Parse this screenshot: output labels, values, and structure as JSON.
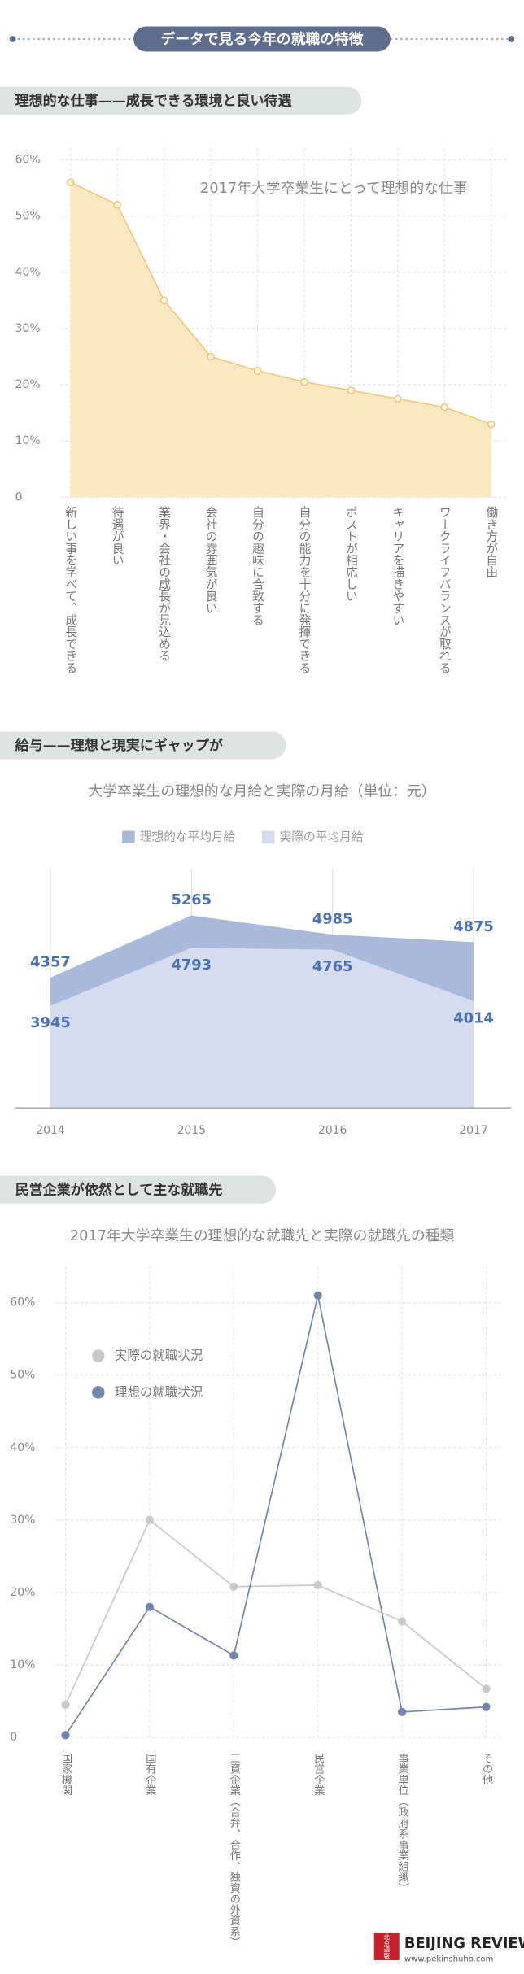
{
  "header": {
    "title": "データで見る今年の就職の特徴"
  },
  "sections": [
    "理想的な仕事——成長できる環境と良い待遇",
    "給与——理想と現実にギャップが",
    "民営企業が依然として主な就職先"
  ],
  "chart_data": [
    {
      "type": "area",
      "title": "2017年大学卒業生にとって理想的な仕事",
      "categories": [
        "新しい事を学べて、成長できる",
        "待遇が良い",
        "業界・会社の成長が見込める",
        "会社の雰囲気が良い",
        "自分の趣味に合致する",
        "自分の能力を十分に発揮できる",
        "ポストが相応しい",
        "キャリアを描きやすい",
        "ワークライフバランスが取れる",
        "働き方が自由"
      ],
      "values": [
        56,
        52,
        35,
        25,
        22.5,
        20.5,
        19,
        17.5,
        16,
        13
      ],
      "color": "#efc677",
      "fill": "#fbe8c2",
      "ylim": [
        0,
        62
      ],
      "yticks": [
        0,
        {
          "value": 10,
          "label": "10%"
        },
        {
          "value": 20,
          "label": "20%"
        },
        {
          "value": 30,
          "label": "30%"
        },
        {
          "value": 40,
          "label": "40%"
        },
        {
          "value": 50,
          "label": "50%"
        },
        {
          "value": 60,
          "label": "60%"
        }
      ],
      "grid": true
    },
    {
      "type": "area",
      "title": "大学卒業生の理想的な月給と実際の月給（単位：元）",
      "categories": [
        "2014",
        "2015",
        "2016",
        "2017"
      ],
      "series": [
        {
          "name": "理想的な平均月給",
          "color": "#a8b9d9",
          "values": [
            4357,
            5265,
            4985,
            4875
          ]
        },
        {
          "name": "実際の平均月給",
          "color": "#d3ddef",
          "values": [
            3945,
            4793,
            4765,
            4014
          ]
        }
      ],
      "ylim": [
        2450,
        5950
      ],
      "legend": "top",
      "data_labels": true
    },
    {
      "type": "line",
      "title": "2017年大学卒業生の理想的な就職先と実際の就職先の種類",
      "categories": [
        "国家機関",
        "国有企業",
        "三資企業（合弁、合作、独資の外資系）",
        "民営企業",
        "事業単位（政府系事業組織）",
        "その他"
      ],
      "series": [
        {
          "name": "実際の就職状況",
          "color": "#c9c9c9",
          "values": [
            4.5,
            30,
            20.8,
            21,
            16,
            6.7
          ]
        },
        {
          "name": "理想の就職状況",
          "color": "#7586ad",
          "values": [
            0.3,
            18,
            11.3,
            61,
            3.5,
            4.2
          ]
        }
      ],
      "ylim": [
        0,
        65
      ],
      "yticks": [
        0,
        {
          "value": 10,
          "label": "10%"
        },
        {
          "value": 20,
          "label": "20%"
        },
        {
          "value": 30,
          "label": "30%"
        },
        {
          "value": 40,
          "label": "40%"
        },
        {
          "value": 50,
          "label": "50%"
        },
        {
          "value": 60,
          "label": "60%"
        }
      ],
      "grid": true,
      "legend": "upper left"
    }
  ],
  "footer": {
    "logo": "北京週報",
    "brand": "BEIJING REVIEW",
    "url": "www.pekinshuho.com"
  }
}
